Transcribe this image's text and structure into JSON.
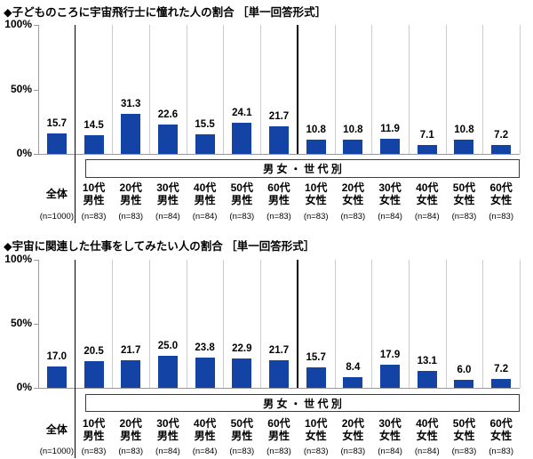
{
  "colors": {
    "bar": "#1243a5",
    "gridline": "#cccccc",
    "axis": "#999999",
    "separator": "#000000",
    "box_border": "#3c3c3c",
    "text": "#000000",
    "background": "#ffffff"
  },
  "group_box_label": "男 女 ・ 世 代 別",
  "chart_data": [
    {
      "type": "bar",
      "title": "◆子どものころに宇宙飛行士に憧れた人の割合 ［単一回答形式］",
      "categories": [
        "全体",
        "10代男性",
        "20代男性",
        "30代男性",
        "40代男性",
        "50代男性",
        "60代男性",
        "10代女性",
        "20代女性",
        "30代女性",
        "40代女性",
        "50代女性",
        "60代女性"
      ],
      "category_label_lines": [
        [
          "全体"
        ],
        [
          "10代",
          "男性"
        ],
        [
          "20代",
          "男性"
        ],
        [
          "30代",
          "男性"
        ],
        [
          "40代",
          "男性"
        ],
        [
          "50代",
          "男性"
        ],
        [
          "60代",
          "男性"
        ],
        [
          "10代",
          "女性"
        ],
        [
          "20代",
          "女性"
        ],
        [
          "30代",
          "女性"
        ],
        [
          "40代",
          "女性"
        ],
        [
          "50代",
          "女性"
        ],
        [
          "60代",
          "女性"
        ]
      ],
      "sample_sizes": [
        "(n=1000)",
        "(n=83)",
        "(n=83)",
        "(n=84)",
        "(n=84)",
        "(n=83)",
        "(n=83)",
        "(n=83)",
        "(n=83)",
        "(n=84)",
        "(n=84)",
        "(n=83)",
        "(n=83)"
      ],
      "values": [
        15.7,
        14.5,
        31.3,
        22.6,
        15.5,
        24.1,
        21.7,
        10.8,
        10.8,
        11.9,
        7.1,
        10.8,
        7.2
      ],
      "value_labels": [
        "15.7",
        "14.5",
        "31.3",
        "22.6",
        "15.5",
        "24.1",
        "21.7",
        "10.8",
        "10.8",
        "11.9",
        "7.1",
        "10.8",
        "7.2"
      ],
      "group_label": "男 女 ・ 世 代 別",
      "xlabel": "",
      "ylabel": "",
      "ylim": [
        0,
        100
      ],
      "y_ticks": [
        {
          "label": "100%",
          "value": 100
        },
        {
          "label": "50%",
          "value": 50
        },
        {
          "label": "0%",
          "value": 0
        }
      ],
      "grid": "vertical-category-dividers",
      "legend": "none"
    },
    {
      "type": "bar",
      "title": "◆宇宙に関連した仕事をしてみたい人の割合 ［単一回答形式］",
      "categories": [
        "全体",
        "10代男性",
        "20代男性",
        "30代男性",
        "40代男性",
        "50代男性",
        "60代男性",
        "10代女性",
        "20代女性",
        "30代女性",
        "40代女性",
        "50代女性",
        "60代女性"
      ],
      "category_label_lines": [
        [
          "全体"
        ],
        [
          "10代",
          "男性"
        ],
        [
          "20代",
          "男性"
        ],
        [
          "30代",
          "男性"
        ],
        [
          "40代",
          "男性"
        ],
        [
          "50代",
          "男性"
        ],
        [
          "60代",
          "男性"
        ],
        [
          "10代",
          "女性"
        ],
        [
          "20代",
          "女性"
        ],
        [
          "30代",
          "女性"
        ],
        [
          "40代",
          "女性"
        ],
        [
          "50代",
          "女性"
        ],
        [
          "60代",
          "女性"
        ]
      ],
      "sample_sizes": [
        "(n=1000)",
        "(n=83)",
        "(n=83)",
        "(n=84)",
        "(n=84)",
        "(n=83)",
        "(n=83)",
        "(n=83)",
        "(n=83)",
        "(n=84)",
        "(n=84)",
        "(n=83)",
        "(n=83)"
      ],
      "values": [
        17.0,
        20.5,
        21.7,
        25.0,
        23.8,
        22.9,
        21.7,
        15.7,
        8.4,
        17.9,
        13.1,
        6.0,
        7.2
      ],
      "value_labels": [
        "17.0",
        "20.5",
        "21.7",
        "25.0",
        "23.8",
        "22.9",
        "21.7",
        "15.7",
        "8.4",
        "17.9",
        "13.1",
        "6.0",
        "7.2"
      ],
      "group_label": "男 女 ・ 世 代 別",
      "xlabel": "",
      "ylabel": "",
      "ylim": [
        0,
        100
      ],
      "y_ticks": [
        {
          "label": "100%",
          "value": 100
        },
        {
          "label": "50%",
          "value": 50
        },
        {
          "label": "0%",
          "value": 0
        }
      ],
      "grid": "vertical-category-dividers",
      "legend": "none"
    }
  ]
}
